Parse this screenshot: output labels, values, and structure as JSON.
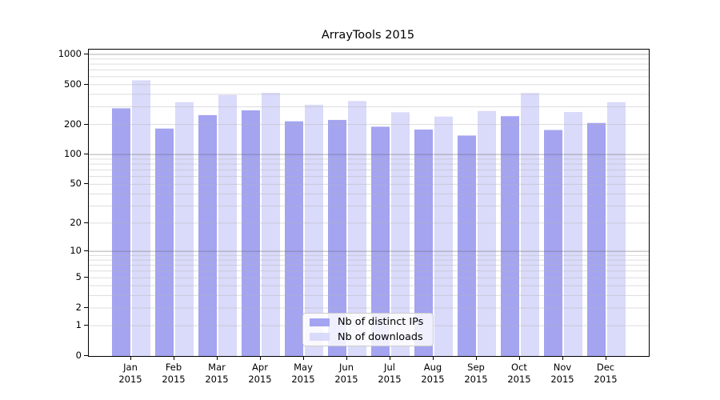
{
  "title": "ArrayTools 2015",
  "colors": {
    "background": "#ffffff",
    "axis": "#000000",
    "major_grid": "rgba(110,110,110,0.55)",
    "minor_grid": "rgba(180,180,180,0.45)",
    "series_ips": "#a4a4f1",
    "series_downloads": "#dadafa",
    "legend_border": "#cccccc"
  },
  "legend": {
    "entries": [
      {
        "label": "Nb of distinct IPs",
        "color": "#a4a4f1"
      },
      {
        "label": "Nb of downloads",
        "color": "#dadafa"
      }
    ],
    "position": "lower center"
  },
  "chart_data": {
    "type": "bar",
    "title": "ArrayTools 2015",
    "xlabel": "",
    "ylabel": "",
    "scale": "log1p",
    "ylim": [
      0,
      1116
    ],
    "grid": true,
    "categories": [
      "Jan",
      "Feb",
      "Mar",
      "Apr",
      "May",
      "Jun",
      "Jul",
      "Aug",
      "Sep",
      "Oct",
      "Nov",
      "Dec"
    ],
    "category_year": "2015",
    "series": [
      {
        "name": "Nb of distinct IPs",
        "color": "#a4a4f1",
        "values": [
          290,
          182,
          248,
          277,
          215,
          222,
          190,
          178,
          155,
          242,
          176,
          207
        ]
      },
      {
        "name": "Nb of downloads",
        "color": "#dadafa",
        "values": [
          552,
          334,
          394,
          414,
          315,
          343,
          265,
          240,
          273,
          412,
          266,
          334
        ]
      }
    ],
    "yticks": [
      0,
      1,
      2,
      5,
      10,
      20,
      50,
      100,
      200,
      500,
      1000
    ],
    "ytick_labels": [
      "0",
      "1",
      "2",
      "5",
      "10",
      "20",
      "50",
      "100",
      "200",
      "500",
      "1000"
    ],
    "major_gridlines": [
      10,
      100,
      1000
    ],
    "minor_gridlines": [
      1,
      2,
      3,
      4,
      5,
      6,
      7,
      8,
      9,
      20,
      30,
      40,
      50,
      60,
      70,
      80,
      90,
      200,
      300,
      400,
      500,
      600,
      700,
      800,
      900
    ],
    "legend_position": "lower center"
  }
}
